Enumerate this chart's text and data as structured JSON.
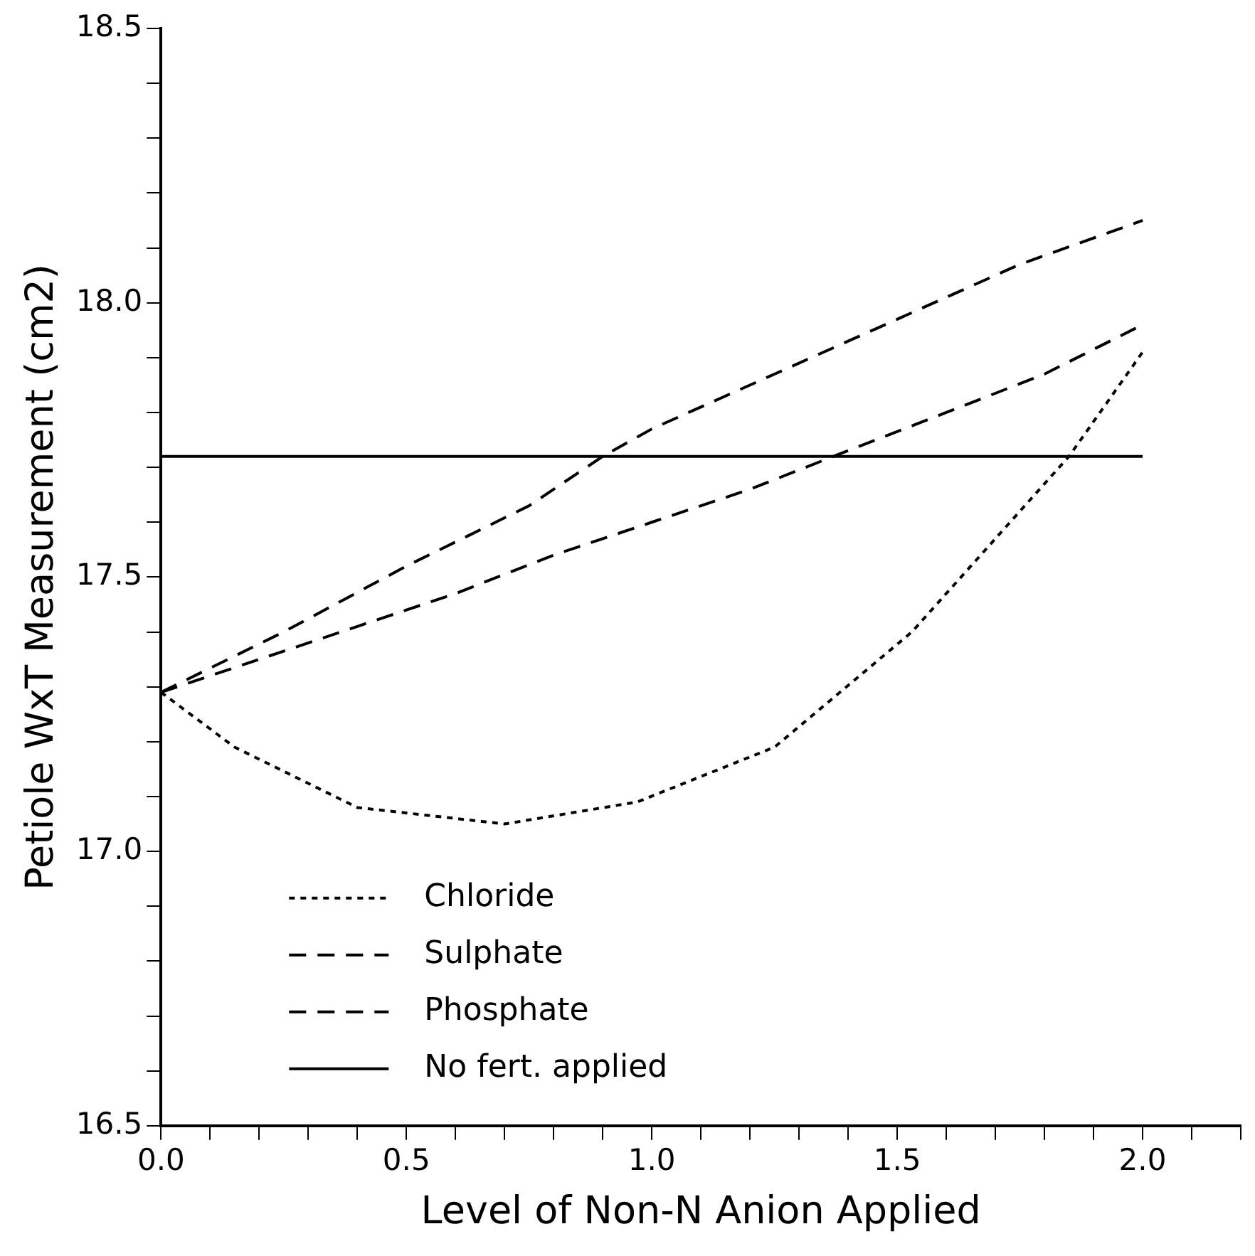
{
  "chart_data": {
    "type": "line",
    "xlabel": "Level of Non-N Anion Applied",
    "ylabel": "Petiole WxT Measurement (cm2)",
    "xlim": [
      0,
      2.2
    ],
    "xticks": [
      {
        "value": 0,
        "label": "0.0"
      },
      {
        "value": 0.1,
        "label": null
      },
      {
        "value": 0.2,
        "label": null
      },
      {
        "value": 0.3,
        "label": null
      },
      {
        "value": 0.4,
        "label": null
      },
      {
        "value": 0.5,
        "label": "0.5"
      },
      {
        "value": 0.6,
        "label": null
      },
      {
        "value": 0.7,
        "label": null
      },
      {
        "value": 0.8,
        "label": null
      },
      {
        "value": 0.9,
        "label": null
      },
      {
        "value": 1.0,
        "label": "1.0"
      },
      {
        "value": 1.1,
        "label": null
      },
      {
        "value": 1.2,
        "label": null
      },
      {
        "value": 1.3,
        "label": null
      },
      {
        "value": 1.4,
        "label": null
      },
      {
        "value": 1.5,
        "label": "1.5"
      },
      {
        "value": 1.6,
        "label": null
      },
      {
        "value": 1.7,
        "label": null
      },
      {
        "value": 1.8,
        "label": null
      },
      {
        "value": 1.9,
        "label": null
      },
      {
        "value": 2.0,
        "label": "2.0"
      },
      {
        "value": 2.1,
        "label": null
      },
      {
        "value": 2.2,
        "label": null
      }
    ],
    "ylim": [
      16.5,
      18.5
    ],
    "yticks": [
      {
        "value": 16.5,
        "label": "16.5"
      },
      {
        "value": 16.6,
        "label": null
      },
      {
        "value": 16.7,
        "label": null
      },
      {
        "value": 16.8,
        "label": null
      },
      {
        "value": 16.9,
        "label": null
      },
      {
        "value": 17.0,
        "label": "17.0"
      },
      {
        "value": 17.1,
        "label": null
      },
      {
        "value": 17.2,
        "label": null
      },
      {
        "value": 17.3,
        "label": null
      },
      {
        "value": 17.4,
        "label": null
      },
      {
        "value": 17.5,
        "label": "17.5"
      },
      {
        "value": 17.6,
        "label": null
      },
      {
        "value": 17.7,
        "label": null
      },
      {
        "value": 17.8,
        "label": null
      },
      {
        "value": 17.9,
        "label": null
      },
      {
        "value": 18.0,
        "label": "18.0"
      },
      {
        "value": 18.1,
        "label": null
      },
      {
        "value": 18.2,
        "label": null
      },
      {
        "value": 18.3,
        "label": null
      },
      {
        "value": 18.4,
        "label": null
      },
      {
        "value": 18.5,
        "label": "18.5"
      }
    ],
    "legend": "bottom left",
    "marker": "none",
    "grid": false,
    "series": [
      {
        "name": "Chloride",
        "color": "#000000",
        "line_style": "dotted",
        "x": [
          0,
          0.15,
          0.4,
          0.7,
          0.97,
          1.25,
          1.53,
          1.67,
          1.85,
          2.0
        ],
        "values": [
          17.29,
          17.19,
          17.08,
          17.05,
          17.09,
          17.19,
          17.4,
          17.54,
          17.72,
          17.91
        ]
      },
      {
        "name": "Sulphate",
        "color": "#000000",
        "line_style": "dashed",
        "x": [
          0,
          0.2,
          0.4,
          0.6,
          0.8,
          1.0,
          1.2,
          1.37,
          1.6,
          1.8,
          2.0
        ],
        "values": [
          17.29,
          17.35,
          17.41,
          17.47,
          17.54,
          17.6,
          17.66,
          17.72,
          17.8,
          17.87,
          17.96
        ]
      },
      {
        "name": "Phosphate",
        "color": "#000000",
        "line_style": "dashed",
        "x": [
          0,
          0.25,
          0.5,
          0.75,
          0.9,
          1.0,
          1.25,
          1.5,
          1.75,
          2.0
        ],
        "values": [
          17.29,
          17.4,
          17.52,
          17.63,
          17.72,
          17.77,
          17.87,
          17.97,
          18.07,
          18.15
        ]
      },
      {
        "name": "No fert. applied",
        "color": "#000000",
        "line_style": "solid",
        "x": [
          0,
          2.0
        ],
        "values": [
          17.72,
          17.72
        ]
      }
    ]
  }
}
